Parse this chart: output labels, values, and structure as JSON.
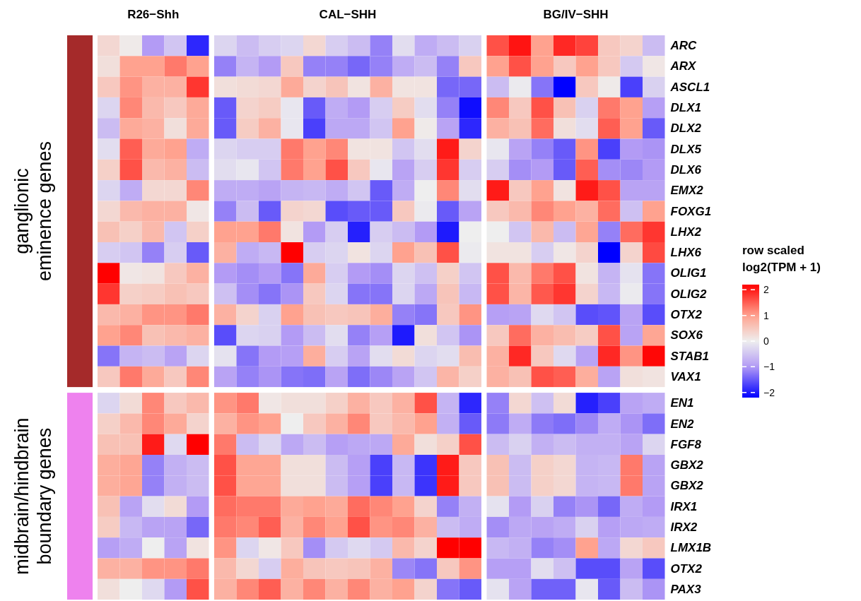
{
  "chart_data": {
    "type": "heatmap",
    "annotations": [
      "R26−Shh",
      "CAL−SHH",
      "BG/IV−SHH",
      "ganglionic eminence genes",
      "midbrain/hindbrain boundary genes"
    ],
    "categories": [
      null,
      null,
      null,
      null,
      null,
      null,
      null,
      null,
      null,
      null,
      null,
      null,
      null,
      null,
      null,
      null,
      null,
      null,
      null,
      null,
      null,
      null,
      null,
      null,
      null
    ],
    "y_categories": [
      "ARC",
      "ARX",
      "ASCL1",
      "DLX1",
      "DLX2",
      "DLX5",
      "DLX6",
      "EMX2",
      "FOXG1",
      "LHX2",
      "LHX6",
      "OLIG1",
      "OLIG2",
      "OTX2",
      "SOX6",
      "STAB1",
      "VAX1",
      "EN1",
      "EN2",
      "FGF8",
      "GBX2",
      "GBX2",
      "IRX1",
      "IRX2",
      "LMX1B",
      "OTX2",
      "PAX3"
    ],
    "clim": [
      -2.2,
      2.2
    ],
    "cticks": [
      -2,
      -1,
      0,
      1,
      2
    ],
    "clabel": "row scaled log2(TPM + 1)",
    "cells": [
      [
        0.3,
        0.05,
        -1.0,
        -0.5,
        -1.9,
        -0.3,
        -0.6,
        -0.4,
        -0.3,
        0.3,
        -0.4,
        -0.6,
        -1.2,
        -0.2,
        -0.8,
        -0.6,
        -0.35,
        1.6,
        2.05,
        1.0,
        1.9,
        1.7,
        0.5,
        0.35,
        -0.6
      ],
      [
        0.2,
        1.0,
        1.0,
        1.3,
        1.0,
        -1.2,
        -0.7,
        -1.0,
        0.5,
        -1.2,
        -1.2,
        -1.4,
        -1.2,
        -0.8,
        -0.6,
        -1.2,
        0.5,
        1.0,
        1.6,
        1.0,
        0.5,
        1.0,
        0.5,
        -0.45,
        0.1
      ],
      [
        0.5,
        1.1,
        0.8,
        0.8,
        1.8,
        0.2,
        0.25,
        0.3,
        0.9,
        0.35,
        0.55,
        0.15,
        0.8,
        0.15,
        0.15,
        -1.4,
        -1.4,
        -0.6,
        -0.05,
        -1.3,
        -2.2,
        0.5,
        0.05,
        -1.7,
        -0.35
      ],
      [
        -0.3,
        1.2,
        0.7,
        0.5,
        0.9,
        -1.5,
        0.35,
        0.45,
        -0.1,
        -1.5,
        -0.8,
        -1.0,
        -0.4,
        0.45,
        -0.2,
        -1.2,
        -2.1,
        1.2,
        0.5,
        1.6,
        0.6,
        -0.35,
        1.3,
        1.0,
        -0.95
      ],
      [
        -0.6,
        0.9,
        0.8,
        0.2,
        0.9,
        -1.5,
        0.45,
        0.8,
        -0.1,
        -1.7,
        -0.85,
        -0.85,
        -0.5,
        1.0,
        0.05,
        -0.9,
        -1.9,
        0.8,
        0.6,
        1.4,
        0.2,
        -0.2,
        1.5,
        1.0,
        -1.5
      ],
      [
        -0.2,
        1.5,
        0.9,
        1.0,
        -0.8,
        -0.3,
        -0.4,
        -0.4,
        1.3,
        1.0,
        1.2,
        0.15,
        0.15,
        -0.5,
        -0.2,
        2.0,
        0.35,
        -0.1,
        -0.9,
        -1.2,
        -1.5,
        1.1,
        -1.7,
        -1.0,
        -1.05
      ],
      [
        0.4,
        1.6,
        0.7,
        0.8,
        -0.6,
        -0.2,
        -0.1,
        -0.5,
        1.3,
        1.0,
        1.6,
        0.5,
        -0.1,
        -0.9,
        -0.4,
        1.8,
        -0.4,
        -0.4,
        -1.1,
        -1.0,
        -1.5,
        1.5,
        -1.1,
        -1.15,
        -1.0
      ],
      [
        -0.3,
        -0.8,
        0.3,
        0.3,
        1.2,
        -0.8,
        -0.8,
        -0.9,
        -0.7,
        -0.65,
        -0.8,
        -0.5,
        -1.5,
        -0.8,
        0.0,
        1.2,
        -0.2,
        2.0,
        0.5,
        1.0,
        0.15,
        2.0,
        1.6,
        -0.9,
        -0.9
      ],
      [
        0.3,
        0.7,
        0.8,
        0.8,
        0.1,
        -1.2,
        -0.6,
        -1.5,
        0.35,
        0.3,
        -1.6,
        -1.5,
        -1.5,
        0.5,
        -0.05,
        -1.5,
        -0.9,
        0.5,
        0.7,
        1.2,
        1.0,
        0.8,
        1.4,
        -0.55,
        1.0
      ],
      [
        0.6,
        0.4,
        0.7,
        -0.5,
        0.4,
        1.0,
        1.0,
        1.3,
        0.15,
        -1.0,
        -0.4,
        -1.95,
        -0.4,
        -0.6,
        -1.0,
        -2.0,
        0.0,
        0.0,
        -0.5,
        0.7,
        -0.6,
        0.95,
        -1.2,
        1.4,
        1.8
      ],
      [
        -0.4,
        -0.5,
        -1.2,
        -0.4,
        -1.5,
        0.8,
        -0.8,
        -0.65,
        2.2,
        -0.4,
        -0.3,
        0.15,
        -0.3,
        1.0,
        0.6,
        1.6,
        -0.05,
        0.15,
        0.15,
        -0.4,
        0.1,
        0.35,
        -2.2,
        0.35,
        1.65
      ],
      [
        2.2,
        0.1,
        0.15,
        0.5,
        0.8,
        -1.0,
        -1.1,
        -1.0,
        -1.3,
        0.9,
        -0.4,
        -1.0,
        -1.1,
        -0.3,
        -0.55,
        0.4,
        -0.5,
        1.6,
        0.7,
        1.3,
        1.6,
        0.15,
        -0.7,
        -0.15,
        -1.3
      ],
      [
        1.8,
        0.4,
        0.45,
        0.6,
        0.5,
        -0.55,
        -1.1,
        -1.3,
        -1.05,
        0.5,
        -0.3,
        -1.3,
        -1.3,
        -0.3,
        -0.85,
        0.55,
        -0.65,
        1.6,
        0.75,
        1.55,
        1.8,
        0.35,
        -0.65,
        -0.05,
        -1.3
      ],
      [
        0.7,
        0.8,
        1.1,
        1.1,
        1.3,
        0.8,
        0.35,
        -0.35,
        1.0,
        0.6,
        0.5,
        0.55,
        0.85,
        -1.2,
        -1.3,
        0.5,
        1.1,
        -0.95,
        -0.9,
        -0.25,
        -0.5,
        -1.6,
        -1.55,
        -0.9,
        -1.6
      ],
      [
        1.0,
        1.2,
        0.6,
        0.7,
        0.8,
        -1.6,
        -0.3,
        -0.35,
        -1.0,
        -0.6,
        -0.2,
        -1.2,
        -0.95,
        -2.0,
        0.2,
        -0.5,
        -1.05,
        0.5,
        1.4,
        0.8,
        0.65,
        0.45,
        1.6,
        -0.9,
        0.95
      ],
      [
        -1.3,
        -0.7,
        -0.6,
        -0.9,
        -0.3,
        -0.15,
        -1.3,
        -1.0,
        -0.95,
        0.85,
        -0.4,
        -0.9,
        -0.2,
        0.25,
        -0.3,
        -0.2,
        0.65,
        0.8,
        1.9,
        0.5,
        -0.25,
        -0.9,
        1.9,
        1.1,
        2.15
      ],
      [
        0.5,
        1.3,
        0.9,
        0.5,
        1.2,
        -0.9,
        -1.2,
        -1.05,
        -1.3,
        -1.35,
        -0.9,
        -1.35,
        -1.15,
        -0.9,
        -0.5,
        0.75,
        0.4,
        0.8,
        0.6,
        1.6,
        1.5,
        0.85,
        -0.9,
        0.2,
        0.15
      ],
      [
        -0.3,
        0.25,
        1.2,
        0.5,
        0.7,
        1.1,
        1.3,
        0.1,
        0.2,
        0.2,
        0.4,
        0.8,
        0.5,
        0.8,
        1.6,
        -0.7,
        -1.9,
        -1.2,
        0.3,
        -0.55,
        0.25,
        -1.95,
        -1.7,
        -0.9,
        -0.8
      ],
      [
        0.4,
        0.7,
        1.2,
        0.9,
        0.35,
        0.8,
        1.1,
        1.0,
        0.0,
        0.5,
        0.8,
        1.2,
        0.5,
        0.7,
        1.0,
        -0.75,
        -1.5,
        -1.25,
        -0.8,
        -1.25,
        -1.35,
        -1.15,
        -0.8,
        -1.05,
        -1.35
      ],
      [
        0.6,
        0.6,
        2.0,
        -0.25,
        2.2,
        1.3,
        -0.6,
        -0.3,
        -0.85,
        -0.6,
        -0.95,
        -0.85,
        -0.85,
        0.9,
        0.2,
        0.4,
        1.6,
        -0.6,
        -0.35,
        -0.75,
        -0.6,
        -0.75,
        -0.75,
        -0.9,
        -0.3
      ],
      [
        0.85,
        0.95,
        -1.2,
        -0.75,
        -0.6,
        1.6,
        0.95,
        0.95,
        0.2,
        0.2,
        -0.6,
        -0.95,
        -1.7,
        -0.65,
        -1.8,
        2.0,
        0.5,
        0.6,
        -0.6,
        0.4,
        0.3,
        -0.7,
        -0.65,
        1.3,
        -0.9
      ],
      [
        0.85,
        0.95,
        -1.2,
        -0.75,
        -0.6,
        1.6,
        0.95,
        0.95,
        0.2,
        0.2,
        -0.6,
        -0.95,
        -1.7,
        -0.65,
        -1.8,
        2.0,
        0.5,
        0.6,
        -0.6,
        0.4,
        0.3,
        -0.7,
        -0.65,
        1.3,
        -0.9
      ],
      [
        0.6,
        -0.9,
        -0.2,
        0.25,
        -1.0,
        1.4,
        1.3,
        1.3,
        0.9,
        1.0,
        0.9,
        1.4,
        1.2,
        1.0,
        0.35,
        -1.2,
        -0.75,
        -0.15,
        -1.0,
        -0.35,
        -1.2,
        -1.05,
        -1.4,
        -0.8,
        -1.0
      ],
      [
        0.45,
        -0.65,
        -0.9,
        -0.9,
        -1.4,
        1.3,
        1.2,
        1.5,
        0.8,
        1.2,
        1.0,
        1.6,
        1.1,
        1.2,
        0.8,
        -0.6,
        -0.8,
        -1.1,
        -0.85,
        -0.9,
        -0.8,
        -0.35,
        -0.95,
        -0.85,
        -0.8
      ],
      [
        -0.95,
        -0.8,
        0.0,
        -0.9,
        0.15,
        1.1,
        -0.3,
        0.1,
        0.5,
        -1.1,
        -0.45,
        -0.25,
        -0.45,
        0.7,
        0.35,
        2.2,
        2.2,
        -0.65,
        -0.75,
        -1.2,
        -1.1,
        1.0,
        -0.85,
        0.3,
        0.5
      ],
      [
        0.8,
        0.8,
        1.1,
        1.1,
        1.3,
        0.7,
        0.3,
        -0.4,
        0.85,
        0.55,
        0.5,
        0.55,
        0.8,
        -1.15,
        -1.3,
        0.5,
        1.1,
        -0.95,
        -0.95,
        -0.2,
        -0.55,
        -1.6,
        -1.6,
        -0.9,
        -1.6
      ],
      [
        0.2,
        0.0,
        -0.25,
        -1.0,
        1.6,
        0.8,
        1.2,
        1.5,
        0.8,
        1.2,
        0.8,
        1.2,
        0.8,
        1.0,
        0.35,
        -1.3,
        -1.5,
        -0.15,
        -0.9,
        -1.45,
        -1.45,
        -0.1,
        -1.5,
        -0.6,
        -1.05
      ]
    ]
  }
}
